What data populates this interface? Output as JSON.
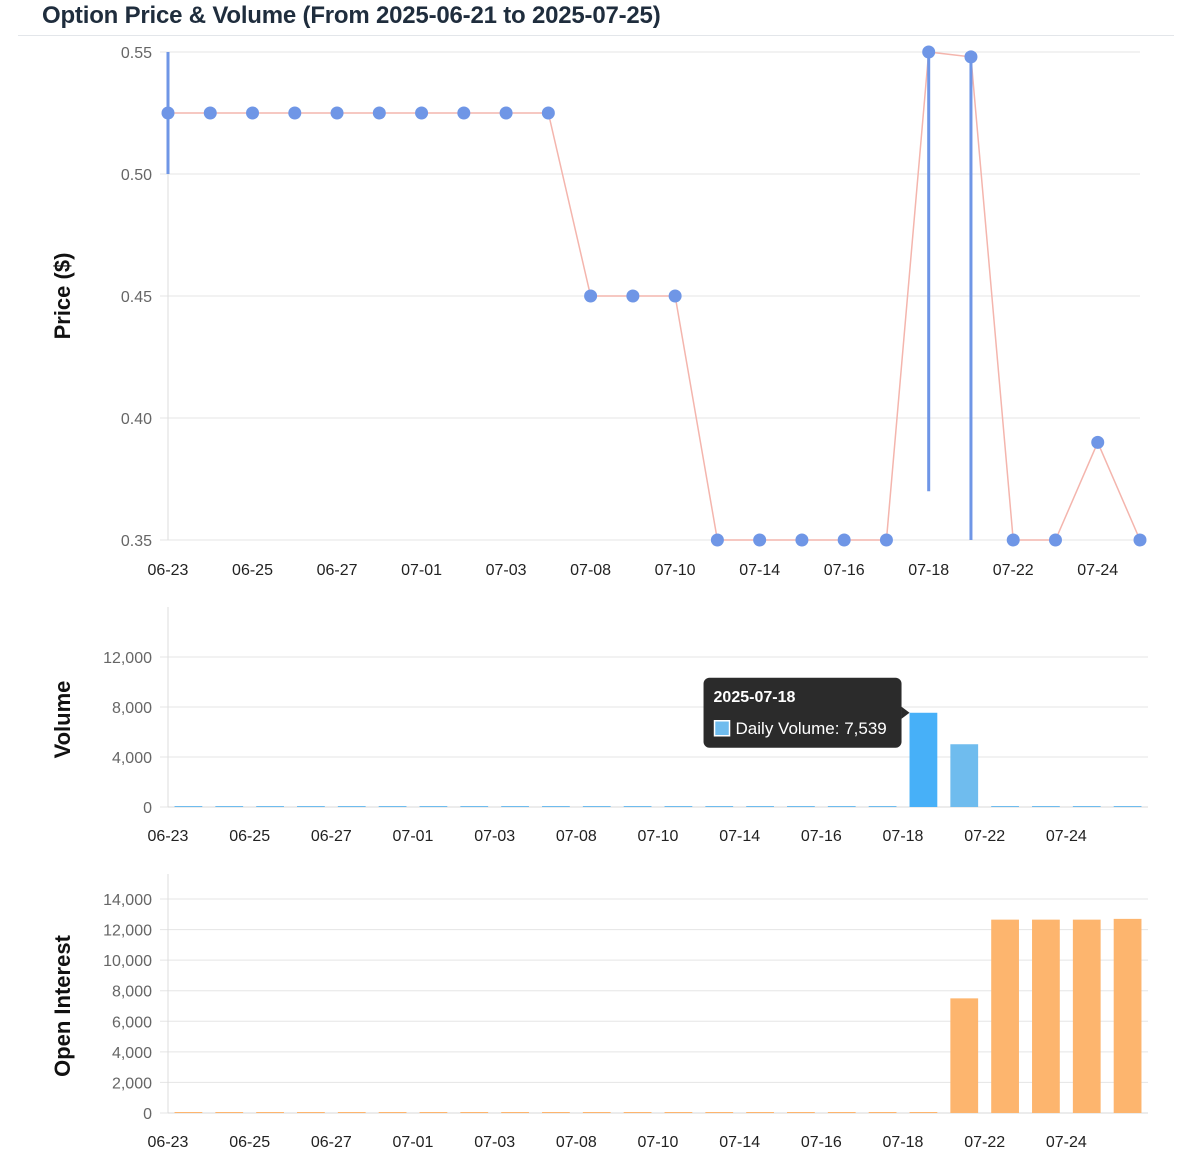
{
  "title": "Option Price & Volume (From 2025-06-21 to 2025-07-25)",
  "colors": {
    "price_point": "#6f96e6",
    "price_line": "#f4b5ad",
    "volume_bar": "#6fbcee",
    "volume_bar_active": "#47b0f8",
    "oi_bar": "#fdb56e",
    "grid": "#e5e5e5",
    "tooltip_bg": "#2b2b2b"
  },
  "chart_data": [
    {
      "type": "line",
      "ylabel": "Price ($)",
      "ylim": [
        0.35,
        0.55
      ],
      "yticks": [
        "0.35",
        "0.40",
        "0.45",
        "0.50",
        "0.55"
      ],
      "x": [
        "2025-06-23",
        "2025-06-24",
        "2025-06-25",
        "2025-06-26",
        "2025-06-27",
        "2025-06-30",
        "2025-07-01",
        "2025-07-02",
        "2025-07-03",
        "2025-07-07",
        "2025-07-08",
        "2025-07-09",
        "2025-07-10",
        "2025-07-11",
        "2025-07-14",
        "2025-07-15",
        "2025-07-16",
        "2025-07-17",
        "2025-07-18",
        "2025-07-21",
        "2025-07-22",
        "2025-07-23",
        "2025-07-24",
        "2025-07-25"
      ],
      "xtick_labels": [
        "06-23",
        "06-25",
        "06-27",
        "07-01",
        "07-03",
        "07-08",
        "07-10",
        "07-14",
        "07-16",
        "07-18",
        "07-22",
        "07-24"
      ],
      "values": [
        0.525,
        0.525,
        0.525,
        0.525,
        0.525,
        0.525,
        0.525,
        0.525,
        0.525,
        0.525,
        0.45,
        0.45,
        0.45,
        0.35,
        0.35,
        0.35,
        0.35,
        0.35,
        0.55,
        0.548,
        0.35,
        0.35,
        0.39,
        0.35
      ],
      "ranges": [
        {
          "x": "2025-06-23",
          "low": 0.5,
          "high": 0.55
        },
        {
          "x": "2025-07-18",
          "low": 0.37,
          "high": 0.55
        },
        {
          "x": "2025-07-21",
          "low": 0.35,
          "high": 0.55
        }
      ],
      "grid": true
    },
    {
      "type": "bar",
      "ylabel": "Volume",
      "ylim": [
        0,
        14000
      ],
      "yticks": [
        "0",
        "4,000",
        "8,000",
        "12,000"
      ],
      "ytick_values": [
        0,
        4000,
        8000,
        12000
      ],
      "series": [
        {
          "name": "Daily Volume",
          "values": [
            2,
            1,
            0,
            0,
            0,
            0,
            0,
            0,
            0,
            0,
            5,
            0,
            0,
            6,
            0,
            0,
            0,
            3,
            7539,
            5020,
            3,
            0,
            2,
            2
          ]
        }
      ],
      "tooltip": {
        "date": "2025-07-18",
        "label": "Daily Volume: 7,539"
      },
      "grid": true
    },
    {
      "type": "bar",
      "ylabel": "Open Interest",
      "ylim": [
        0,
        14000
      ],
      "yticks": [
        "0",
        "2,000",
        "4,000",
        "6,000",
        "8,000",
        "10,000",
        "12,000",
        "14,000"
      ],
      "ytick_values": [
        0,
        2000,
        4000,
        6000,
        8000,
        10000,
        12000,
        14000
      ],
      "series": [
        {
          "name": "Open Interest",
          "values": [
            30,
            30,
            30,
            30,
            30,
            30,
            30,
            30,
            30,
            30,
            30,
            30,
            30,
            30,
            30,
            30,
            30,
            30,
            30,
            7500,
            12650,
            12650,
            12650,
            12700
          ]
        }
      ],
      "grid": true
    }
  ]
}
